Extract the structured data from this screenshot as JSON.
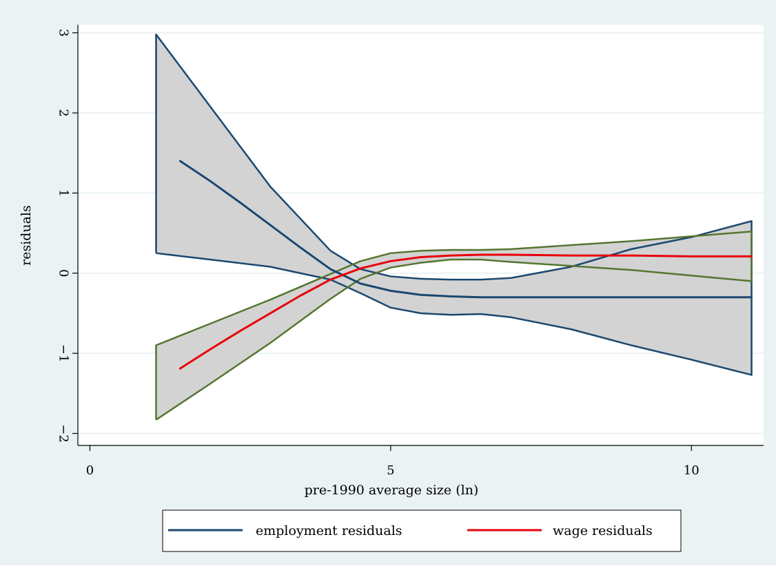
{
  "chart_data": {
    "type": "line",
    "title": "",
    "xlabel": "pre-1990 average size (ln)",
    "ylabel": "residuals",
    "xlim": [
      -0.2,
      11.2
    ],
    "ylim": [
      -2.15,
      3.1
    ],
    "x_ticks": [
      0,
      5,
      10
    ],
    "y_ticks": [
      -2,
      -1,
      0,
      1,
      2,
      3
    ],
    "grid": true,
    "legend_position": "bottom",
    "colors": {
      "outer_background": "#eaf2f3",
      "plot_background": "#ffffff",
      "grid": "#eaf2f3",
      "band_fill": "#d3d3d3",
      "employment": "#1a476f",
      "wage": "#e8000b",
      "wage_band_edge": "#55752f"
    },
    "series": [
      {
        "name": "employment residuals",
        "color": "#1a476f",
        "x": [
          1.5,
          2.0,
          2.5,
          3.0,
          3.5,
          4.0,
          4.5,
          5.0,
          5.5,
          6.0,
          6.5,
          7.0,
          8.0,
          9.0,
          10.0,
          11.0
        ],
        "values": [
          1.4,
          1.15,
          0.88,
          0.6,
          0.32,
          0.05,
          -0.13,
          -0.22,
          -0.27,
          -0.29,
          -0.3,
          -0.3,
          -0.3,
          -0.3,
          -0.3,
          -0.3
        ]
      },
      {
        "name": "wage residuals",
        "color": "#e8000b",
        "x": [
          1.5,
          2.0,
          2.5,
          3.0,
          3.5,
          4.0,
          4.5,
          5.0,
          5.5,
          6.0,
          6.5,
          7.0,
          8.0,
          9.0,
          10.0,
          11.0
        ],
        "values": [
          -1.19,
          -0.95,
          -0.72,
          -0.5,
          -0.28,
          -0.08,
          0.06,
          0.15,
          0.2,
          0.22,
          0.23,
          0.23,
          0.22,
          0.22,
          0.21,
          0.21
        ]
      }
    ],
    "bands": [
      {
        "series": "employment residuals",
        "x": [
          1.1,
          2.0,
          3.0,
          4.0,
          4.5,
          5.0,
          5.5,
          6.0,
          6.5,
          7.0,
          8.0,
          9.0,
          10.0,
          11.0
        ],
        "upper": [
          2.98,
          2.08,
          1.08,
          0.28,
          0.05,
          -0.04,
          -0.07,
          -0.08,
          -0.08,
          -0.06,
          0.08,
          0.3,
          0.45,
          0.65
        ],
        "lower": [
          0.25,
          0.17,
          0.08,
          -0.08,
          -0.25,
          -0.43,
          -0.5,
          -0.52,
          -0.51,
          -0.55,
          -0.7,
          -0.9,
          -1.08,
          -1.27
        ]
      },
      {
        "series": "wage residuals",
        "x": [
          1.1,
          2.0,
          3.0,
          4.0,
          4.5,
          5.0,
          5.5,
          6.0,
          6.5,
          7.0,
          8.0,
          9.0,
          10.0,
          11.0
        ],
        "upper": [
          -0.9,
          -0.63,
          -0.33,
          -0.01,
          0.15,
          0.25,
          0.28,
          0.29,
          0.29,
          0.3,
          0.35,
          0.4,
          0.46,
          0.52
        ],
        "lower": [
          -1.83,
          -1.38,
          -0.87,
          -0.32,
          -0.07,
          0.07,
          0.13,
          0.17,
          0.17,
          0.14,
          0.09,
          0.04,
          -0.03,
          -0.1
        ]
      }
    ]
  }
}
